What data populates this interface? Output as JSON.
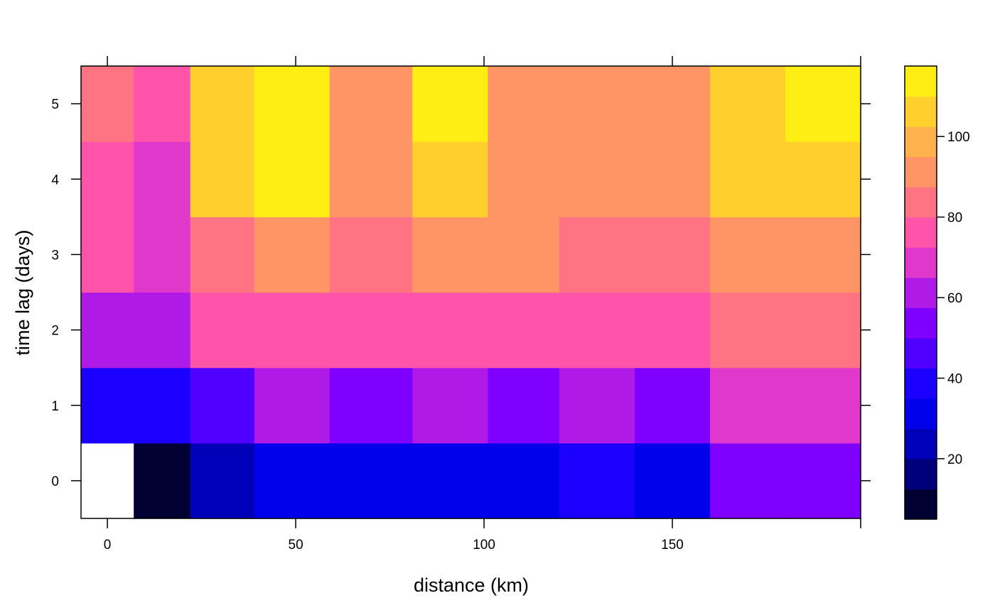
{
  "chart_data": {
    "type": "heatmap",
    "xlabel": "distance (km)",
    "ylabel": "time lag (days)",
    "x_edges": [
      -7,
      7,
      22,
      39,
      59,
      81,
      101,
      120,
      140,
      160,
      180,
      200
    ],
    "y_rows": [
      0,
      1,
      2,
      3,
      4,
      5
    ],
    "xlim": [
      -7,
      200
    ],
    "ylim": [
      -0.5,
      5.5
    ],
    "x_ticks": [
      0,
      50,
      100,
      150
    ],
    "y_ticks": [
      0,
      1,
      2,
      3,
      4,
      5
    ],
    "values": [
      [
        null,
        5,
        20,
        29,
        29,
        33,
        33,
        42,
        33,
        55,
        55
      ],
      [
        35,
        35,
        48,
        62,
        50,
        62,
        50,
        62,
        52,
        68,
        68
      ],
      [
        61,
        61,
        73,
        79,
        74,
        79,
        74,
        74,
        74,
        80,
        85
      ],
      [
        73,
        66,
        86,
        94,
        81,
        94,
        88,
        81,
        81,
        94,
        94
      ],
      [
        79,
        72,
        103,
        110,
        88,
        103,
        94,
        88,
        88,
        103,
        103
      ],
      [
        86,
        78,
        103,
        115,
        94,
        110,
        94,
        94,
        94,
        103,
        110
      ]
    ],
    "colorbar": {
      "breaks": [
        5,
        12.5,
        20,
        27.5,
        35,
        42.5,
        50,
        57.5,
        65,
        72.5,
        80,
        87.5,
        95,
        102.5,
        110,
        117.5
      ],
      "colors": [
        "#000033",
        "#00007B",
        "#0000B8",
        "#0000EA",
        "#1B00FF",
        "#4F00FF",
        "#7F00FF",
        "#B01AE6",
        "#E038CA",
        "#FF54A9",
        "#FF7383",
        "#FF9465",
        "#FFB14D",
        "#FFCF2E",
        "#FFEE14",
        "#FFFF60"
      ],
      "ticks": [
        20,
        40,
        60,
        80,
        100
      ]
    },
    "missing_color": "#FFFFFF"
  }
}
